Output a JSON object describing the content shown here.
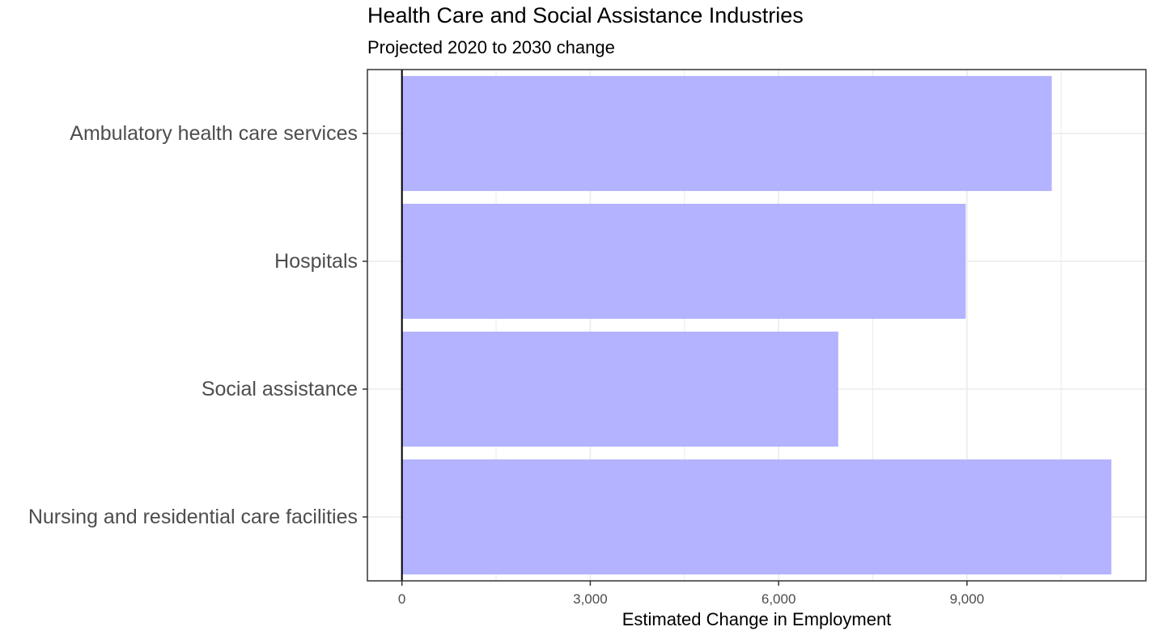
{
  "chart_data": {
    "type": "bar",
    "orientation": "horizontal",
    "title": "Health Care and Social Assistance Industries",
    "subtitle": "Projected 2020 to 2030 change",
    "xlabel": "Estimated Change in Employment",
    "ylabel": "",
    "categories": [
      "Ambulatory health care services",
      "Hospitals",
      "Social assistance",
      "Nursing and residential care facilities"
    ],
    "values": [
      10350,
      8980,
      6950,
      11300
    ],
    "xlim": [
      -550,
      11850
    ],
    "x_ticks": [
      0,
      3000,
      6000,
      9000
    ],
    "x_tick_labels": [
      "0",
      "3,000",
      "6,000",
      "9,000"
    ],
    "grid": true,
    "legend": "none",
    "colors": {
      "bar": "#b3b3ff",
      "grid": "#ebebeb",
      "zero_line": "#000000",
      "panel_border": "#333333",
      "label_text": "#4d4d4d"
    }
  }
}
